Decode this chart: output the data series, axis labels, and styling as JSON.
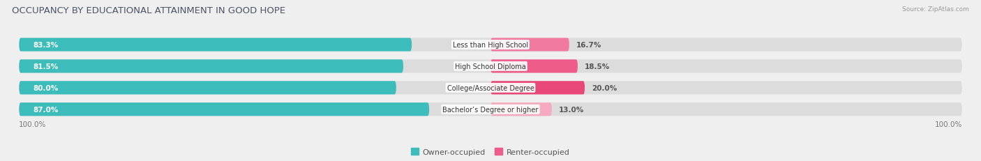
{
  "title": "OCCUPANCY BY EDUCATIONAL ATTAINMENT IN GOOD HOPE",
  "source": "Source: ZipAtlas.com",
  "categories": [
    "Less than High School",
    "High School Diploma",
    "College/Associate Degree",
    "Bachelor’s Degree or higher"
  ],
  "owner_values": [
    83.3,
    81.5,
    80.0,
    87.0
  ],
  "renter_values": [
    16.7,
    18.5,
    20.0,
    13.0
  ],
  "owner_color": "#3DBCBC",
  "renter_colors": [
    "#F07AA0",
    "#EE5C8A",
    "#E84878",
    "#F5AABF"
  ],
  "bar_height": 0.62,
  "bg_color": "#efefef",
  "bar_bg_color": "#dcdcdc",
  "title_fontsize": 9.5,
  "label_fontsize": 7.5,
  "tick_fontsize": 7.5,
  "legend_fontsize": 8,
  "source_fontsize": 6.5
}
